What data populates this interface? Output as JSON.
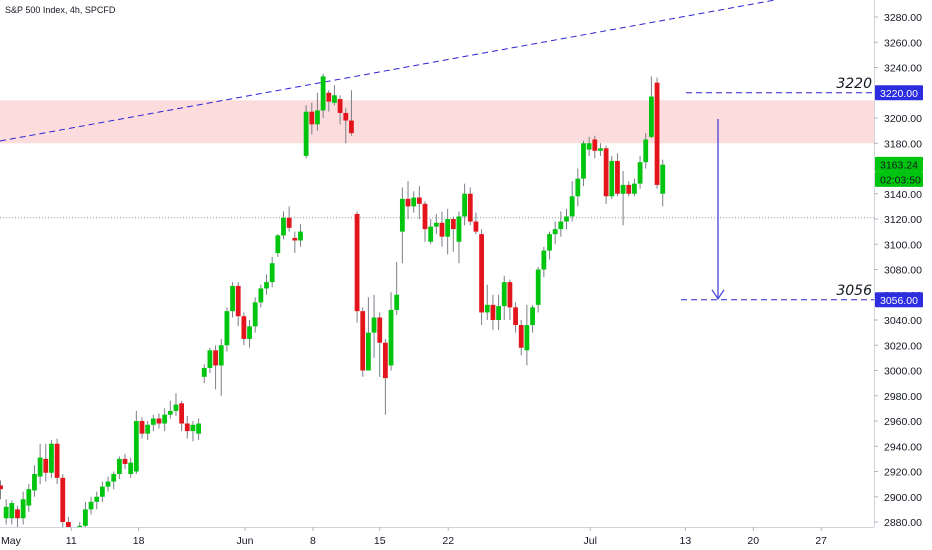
{
  "chart_data": {
    "type": "candlestick",
    "title": "S&P 500 Index, 4h, SPCFD",
    "ylim": [
      2870,
      3300
    ],
    "y_ticks": [
      2880,
      2900,
      2920,
      2940,
      2960,
      2980,
      3000,
      3020,
      3040,
      3060,
      3080,
      3100,
      3120,
      3140,
      3160,
      3180,
      3200,
      3220,
      3240,
      3260,
      3280
    ],
    "x_ticks": [
      {
        "label": "May",
        "index": -1.2
      },
      {
        "label": "11",
        "index": 12.5
      },
      {
        "label": "18",
        "index": 24.4
      },
      {
        "label": "Jun",
        "index": 43.2
      },
      {
        "label": "8",
        "index": 55.2
      },
      {
        "label": "15",
        "index": 67.0
      },
      {
        "label": "22",
        "index": 79.1
      },
      {
        "label": "Jul",
        "index": 104.2
      },
      {
        "label": "13",
        "index": 121.0
      },
      {
        "label": "20",
        "index": 133.0
      },
      {
        "label": "27",
        "index": 145.0
      }
    ],
    "candles": [
      [
        2909,
        2906,
        2913,
        2898
      ],
      [
        2883,
        2892,
        2898,
        2878
      ],
      [
        2883,
        2895,
        2897,
        2878
      ],
      [
        2890,
        2883,
        2893,
        2876
      ],
      [
        2883,
        2898,
        2904,
        2878
      ],
      [
        2893,
        2906,
        2910,
        2888
      ],
      [
        2905,
        2918,
        2925,
        2900
      ],
      [
        2916,
        2931,
        2942,
        2910
      ],
      [
        2930,
        2919,
        2942,
        2912
      ],
      [
        2919,
        2942,
        2945,
        2915
      ],
      [
        2942,
        2915,
        2946,
        2910
      ],
      [
        2915,
        2880,
        2918,
        2860
      ],
      [
        2880,
        2856,
        2884,
        2848
      ],
      [
        2856,
        2868,
        2872,
        2850
      ],
      [
        2868,
        2877,
        2880,
        2862
      ],
      [
        2877,
        2890,
        2896,
        2872
      ],
      [
        2890,
        2896,
        2900,
        2886
      ],
      [
        2896,
        2900,
        2904,
        2890
      ],
      [
        2900,
        2908,
        2912,
        2896
      ],
      [
        2908,
        2912,
        2916,
        2904
      ],
      [
        2912,
        2918,
        2920,
        2906
      ],
      [
        2918,
        2930,
        2932,
        2914
      ],
      [
        2930,
        2926,
        2934,
        2922
      ],
      [
        2918,
        2927,
        2931,
        2915
      ],
      [
        2920,
        2960,
        2968,
        2918
      ],
      [
        2960,
        2950,
        2963,
        2946
      ],
      [
        2950,
        2957,
        2960,
        2945
      ],
      [
        2957,
        2962,
        2965,
        2952
      ],
      [
        2962,
        2958,
        2966,
        2954
      ],
      [
        2958,
        2965,
        2970,
        2952
      ],
      [
        2965,
        2968,
        2976,
        2962
      ],
      [
        2968,
        2973,
        2982,
        2964
      ],
      [
        2974,
        2958,
        2976,
        2952
      ],
      [
        2958,
        2952,
        2964,
        2946
      ],
      [
        2952,
        2957,
        2960,
        2944
      ],
      [
        2950,
        2958,
        2962,
        2945
      ],
      [
        2995,
        3002,
        3005,
        2990
      ],
      [
        3002,
        3016,
        3018,
        2998
      ],
      [
        3016,
        3004,
        3020,
        2985
      ],
      [
        3004,
        3020,
        3025,
        2980
      ],
      [
        3020,
        3047,
        3050,
        3015
      ],
      [
        3047,
        3067,
        3070,
        3042
      ],
      [
        3067,
        3043,
        3070,
        3035
      ],
      [
        3043,
        3025,
        3046,
        3020
      ],
      [
        3025,
        3035,
        3040,
        3018
      ],
      [
        3035,
        3054,
        3058,
        3030
      ],
      [
        3054,
        3065,
        3068,
        3050
      ],
      [
        3065,
        3070,
        3076,
        3060
      ],
      [
        3070,
        3085,
        3090,
        3066
      ],
      [
        3093,
        3107,
        3108,
        3090
      ],
      [
        3107,
        3121,
        3126,
        3104
      ],
      [
        3121,
        3113,
        3130,
        3110
      ],
      [
        3105,
        3103,
        3110,
        3093
      ],
      [
        3103,
        3110,
        3116,
        3098
      ],
      [
        3170,
        3205,
        3210,
        3168
      ],
      [
        3205,
        3195,
        3212,
        3187
      ],
      [
        3195,
        3206,
        3220,
        3190
      ],
      [
        3206,
        3233,
        3235,
        3200
      ],
      [
        3220,
        3213,
        3222,
        3205
      ],
      [
        3212,
        3218,
        3226,
        3210
      ],
      [
        3215,
        3204,
        3218,
        3195
      ],
      [
        3204,
        3198,
        3208,
        3180
      ],
      [
        3198,
        3188,
        3222,
        3186
      ],
      [
        3124,
        3047,
        3126,
        3038
      ],
      [
        3047,
        3000,
        3050,
        2995
      ],
      [
        3000,
        3030,
        3058,
        3000
      ],
      [
        3030,
        3042,
        3060,
        3010
      ],
      [
        3042,
        3022,
        3046,
        2995
      ],
      [
        3022,
        2994,
        3025,
        2965
      ],
      [
        3004,
        3048,
        3062,
        3000
      ],
      [
        3048,
        3060,
        3086,
        3044
      ],
      [
        3110,
        3136,
        3145,
        3085
      ],
      [
        3136,
        3130,
        3150,
        3120
      ],
      [
        3130,
        3137,
        3142,
        3125
      ],
      [
        3137,
        3132,
        3146,
        3120
      ],
      [
        3132,
        3112,
        3134,
        3102
      ],
      [
        3102,
        3114,
        3120,
        3100
      ],
      [
        3114,
        3117,
        3124,
        3108
      ],
      [
        3117,
        3106,
        3126,
        3098
      ],
      [
        3106,
        3120,
        3128,
        3092
      ],
      [
        3120,
        3112,
        3122,
        3094
      ],
      [
        3102,
        3122,
        3126,
        3085
      ],
      [
        3122,
        3140,
        3148,
        3115
      ],
      [
        3140,
        3118,
        3145,
        3115
      ],
      [
        3118,
        3110,
        3125,
        3108
      ],
      [
        3108,
        3046,
        3112,
        3036
      ],
      [
        3046,
        3052,
        3068,
        3040
      ],
      [
        3052,
        3040,
        3060,
        3032
      ],
      [
        3040,
        3051,
        3060,
        3032
      ],
      [
        3051,
        3070,
        3075,
        3040
      ],
      [
        3070,
        3050,
        3072,
        3040
      ],
      [
        3050,
        3036,
        3054,
        3030
      ],
      [
        3036,
        3018,
        3040,
        3012
      ],
      [
        3016,
        3036,
        3052,
        3004
      ],
      [
        3036,
        3050,
        3052,
        3030
      ],
      [
        3052,
        3080,
        3082,
        3046
      ],
      [
        3080,
        3095,
        3098,
        3074
      ],
      [
        3095,
        3108,
        3110,
        3088
      ],
      [
        3108,
        3112,
        3118,
        3100
      ],
      [
        3112,
        3118,
        3126,
        3106
      ],
      [
        3118,
        3122,
        3128,
        3112
      ],
      [
        3122,
        3138,
        3150,
        3118
      ],
      [
        3138,
        3152,
        3160,
        3130
      ],
      [
        3152,
        3180,
        3182,
        3146
      ],
      [
        3175,
        3180,
        3185,
        3170
      ],
      [
        3183,
        3174,
        3186,
        3168
      ],
      [
        3174,
        3176,
        3180,
        3170
      ],
      [
        3176,
        3138,
        3178,
        3132
      ],
      [
        3138,
        3166,
        3170,
        3136
      ],
      [
        3166,
        3140,
        3172,
        3138
      ],
      [
        3140,
        3147,
        3158,
        3115
      ],
      [
        3147,
        3140,
        3150,
        3138
      ],
      [
        3140,
        3148,
        3152,
        3138
      ],
      [
        3148,
        3165,
        3170,
        3144
      ],
      [
        3165,
        3183,
        3188,
        3160
      ],
      [
        3185,
        3217,
        3233,
        3184
      ],
      [
        3228,
        3147,
        3232,
        3144
      ],
      [
        3140,
        3163,
        3167,
        3130
      ]
    ],
    "annotations": [
      {
        "text": "3220",
        "value": 3220
      },
      {
        "text": "3056",
        "value": 3056
      }
    ],
    "zone": {
      "low": 3180,
      "high": 3214
    },
    "dotted_level": 3121,
    "price_tags": {
      "current": "3163.24",
      "countdown": "02:03:50",
      "upper": "3220.00",
      "lower": "3056.00"
    },
    "colors": {
      "up": "#00c50e",
      "down": "#e3141b",
      "zone": "#fcdcdc",
      "line": "#2c23d6",
      "arrow": "#4646d8"
    }
  }
}
